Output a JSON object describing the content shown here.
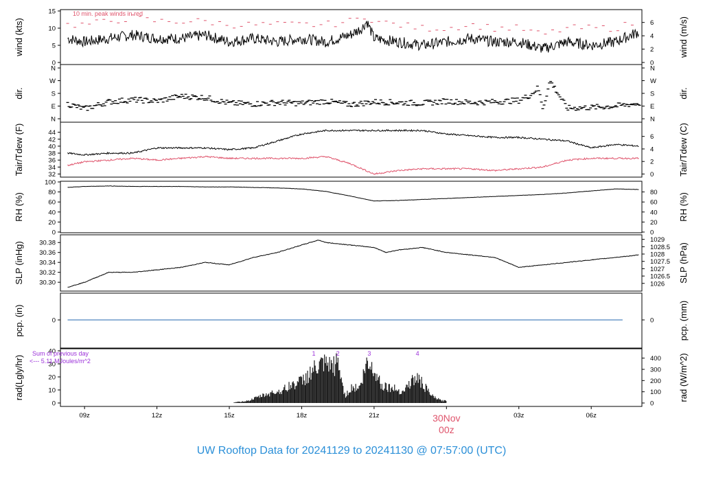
{
  "footer_title": "UW Rooftop Data for 20241129  to  20241130 @ 07:57:00  (UTC)",
  "date_marker": {
    "day": "30Nov",
    "time": "00z"
  },
  "colors": {
    "series": "#000000",
    "secondary": "#df536b",
    "precip": "#2166ac",
    "annotation": "#9b30d9",
    "footer": "#2a8fd8"
  },
  "chart_data": [
    {
      "type": "line",
      "panel": "wind",
      "ylabel_left": "wind (kts)",
      "ylabel_right": "wind (m/s)",
      "yticks_left": [
        0,
        5,
        10,
        15
      ],
      "yticks_right": [
        0,
        2,
        4,
        6
      ],
      "ylim": [
        0,
        15
      ],
      "annotation": "10 min. peak winds in red",
      "series": [
        {
          "color": "#000000",
          "x": [
            8.3,
            9,
            10,
            11,
            12,
            13,
            14,
            15,
            16,
            17,
            18,
            19,
            20,
            20.5,
            20.7,
            21,
            22,
            23,
            24,
            25,
            26,
            27,
            27.5,
            28,
            29,
            30,
            31,
            32
          ],
          "values": [
            7,
            6,
            7,
            8,
            7,
            7,
            8,
            6,
            7,
            6,
            7,
            6,
            8,
            10,
            12,
            7,
            6,
            5,
            6,
            7,
            6,
            6,
            5,
            4,
            6,
            5,
            6,
            9
          ]
        },
        {
          "color": "#df536b",
          "x": [
            8.3,
            9,
            10,
            11,
            12,
            13,
            14,
            15,
            16,
            17,
            18,
            19,
            20,
            20.5,
            20.7,
            21,
            22,
            23,
            24,
            25,
            26,
            27,
            27.5,
            28,
            29,
            30,
            31,
            32
          ],
          "values": [
            11,
            11,
            12,
            13,
            12,
            12,
            12,
            11,
            11,
            11,
            11,
            11,
            12,
            13,
            14,
            12,
            11,
            10,
            10,
            11,
            10,
            10,
            9,
            8,
            10,
            10,
            10,
            12
          ]
        }
      ]
    },
    {
      "type": "scatter",
      "panel": "dir",
      "ylabel_left": "dir.",
      "ylabel_right": "dir.",
      "yticks_left": [
        "N",
        "E",
        "S",
        "W",
        "N"
      ],
      "yticks_right": [
        "N",
        "E",
        "S",
        "W",
        "N"
      ],
      "ylim": [
        0,
        360
      ],
      "series": [
        {
          "x": [
            8.3,
            9,
            10,
            11,
            12,
            13,
            14,
            15,
            16,
            17,
            18,
            19,
            20,
            21,
            22,
            23,
            24,
            25,
            26,
            27,
            27.5,
            27.8,
            28,
            28.3,
            29,
            30,
            31,
            32
          ],
          "values": [
            105,
            70,
            120,
            135,
            125,
            160,
            150,
            110,
            105,
            115,
            110,
            125,
            100,
            120,
            115,
            110,
            125,
            115,
            120,
            130,
            170,
            220,
            75,
            270,
            75,
            80,
            90,
            110
          ]
        }
      ]
    },
    {
      "type": "line",
      "panel": "temp",
      "ylabel_left": "Tair/Tdew (F)",
      "ylabel_right": "Tair/Tdew (C)",
      "yticks_left": [
        32,
        34,
        36,
        38,
        40,
        42,
        44
      ],
      "yticks_right": [
        0,
        2,
        4,
        6
      ],
      "ylim": [
        31.5,
        45.5
      ],
      "series": [
        {
          "color": "#000000",
          "x": [
            8.3,
            9,
            10,
            11,
            12,
            13,
            14,
            15,
            16,
            17,
            18,
            19,
            20,
            21,
            22,
            23,
            24,
            25,
            26,
            27,
            28,
            29,
            30,
            31,
            32
          ],
          "values": [
            38,
            37.5,
            38,
            38,
            39.5,
            39.5,
            39.5,
            39,
            39.5,
            41.5,
            43.5,
            44.5,
            44.5,
            44.5,
            44.5,
            44.5,
            43.5,
            43,
            42.5,
            42.5,
            42,
            41.5,
            39.5,
            40.5,
            40
          ]
        },
        {
          "color": "#df536b",
          "x": [
            8.3,
            9,
            10,
            11,
            12,
            13,
            14,
            15,
            16,
            17,
            18,
            19,
            20,
            21,
            22,
            23,
            24,
            25,
            26,
            27,
            28,
            29,
            30,
            31,
            32
          ],
          "values": [
            34.5,
            35.5,
            36,
            36.5,
            36,
            36.5,
            37,
            36.5,
            36.5,
            36.5,
            36.5,
            37,
            35,
            32,
            33,
            33.5,
            33.5,
            33.5,
            33,
            33.5,
            34,
            36,
            36.5,
            36.5,
            36.5
          ]
        }
      ]
    },
    {
      "type": "line",
      "panel": "rh",
      "ylabel_left": "RH (%)",
      "ylabel_right": "RH (%)",
      "yticks_left": [
        0,
        20,
        40,
        60,
        80,
        100
      ],
      "yticks_right": [
        0,
        20,
        40,
        60,
        80
      ],
      "ylim": [
        0,
        100
      ],
      "series": [
        {
          "color": "#000000",
          "x": [
            8.3,
            9,
            10,
            11,
            12,
            13,
            14,
            15,
            16,
            17,
            18,
            19,
            20,
            21,
            22,
            23,
            24,
            25,
            26,
            27,
            28,
            29,
            30,
            31,
            32
          ],
          "values": [
            89,
            91,
            92,
            91,
            91,
            91,
            90,
            90,
            89,
            88,
            86,
            81,
            72,
            62,
            63,
            65,
            67,
            69,
            71,
            73,
            75,
            78,
            82,
            86,
            85
          ]
        }
      ]
    },
    {
      "type": "line",
      "panel": "slp",
      "ylabel_left": "SLP (inHg)",
      "ylabel_right": "SLP (hPa)",
      "yticks_left": [
        30.3,
        30.32,
        30.34,
        30.36,
        30.38
      ],
      "yticks_right": [
        1026,
        1026.5,
        1027,
        1027.5,
        1028,
        1028.5,
        1029
      ],
      "ylim": [
        30.285,
        30.39
      ],
      "series": [
        {
          "color": "#000000",
          "x": [
            8.3,
            9,
            10,
            11,
            12,
            13,
            14,
            15,
            16,
            17,
            18,
            18.7,
            19,
            20,
            21,
            21.5,
            22,
            23,
            24,
            25,
            26,
            27,
            28,
            29,
            30,
            31,
            32
          ],
          "values": [
            30.29,
            30.3,
            30.32,
            30.32,
            30.325,
            30.33,
            30.34,
            30.335,
            30.35,
            30.36,
            30.375,
            30.385,
            30.38,
            30.375,
            30.37,
            30.36,
            30.365,
            30.37,
            30.36,
            30.355,
            30.35,
            30.33,
            30.335,
            30.34,
            30.345,
            30.35,
            30.355
          ]
        }
      ]
    },
    {
      "type": "line",
      "panel": "pcp",
      "ylabel_left": "pcp. (in)",
      "ylabel_right": "pcp. (mm)",
      "yticks_left": [
        0
      ],
      "yticks_right": [
        0
      ],
      "ylim": [
        -1,
        1
      ],
      "series": [
        {
          "color": "#2166ac",
          "x": [
            8.3,
            32
          ],
          "values": [
            0,
            0
          ]
        }
      ]
    },
    {
      "type": "bar",
      "panel": "rad",
      "ylabel_left": "rad(Lgly/hr)",
      "ylabel_right": "rad (W/m^2)",
      "yticks_left": [
        0,
        10,
        20,
        30,
        40
      ],
      "yticks_right": [
        0,
        100,
        200,
        300,
        400
      ],
      "ylim": [
        0,
        40
      ],
      "annotation_lines": [
        "Sum of previous day",
        "<--- 5.11 MJoules/m^2"
      ],
      "peak_labels": [
        {
          "label": "1",
          "x": 18.5
        },
        {
          "label": "2",
          "x": 19.5
        },
        {
          "label": "3",
          "x": 20.8
        },
        {
          "label": "4",
          "x": 22.8
        }
      ],
      "series": [
        {
          "x": [
            15.2,
            15.8,
            16.3,
            16.8,
            17.2,
            17.6,
            18.0,
            18.3,
            18.6,
            18.9,
            19.2,
            19.5,
            19.8,
            20.1,
            20.4,
            20.7,
            21.0,
            21.3,
            21.6,
            21.9,
            22.2,
            22.5,
            22.8,
            23.1,
            23.4,
            23.8
          ],
          "values": [
            0.5,
            2,
            6,
            9,
            11,
            16,
            19,
            25,
            30,
            33,
            31,
            35,
            6,
            14,
            13,
            34,
            30,
            16,
            14,
            12,
            10,
            18,
            22,
            14,
            6,
            2
          ]
        }
      ]
    },
    {
      "type": "axis",
      "panel": "time",
      "xticks": [
        9,
        12,
        15,
        18,
        21,
        24,
        27,
        30
      ],
      "xtick_labels": [
        "09z",
        "12z",
        "15z",
        "18z",
        "21z",
        "00z",
        "03z",
        "06z"
      ],
      "xlim": [
        8.0,
        32.1
      ]
    }
  ]
}
